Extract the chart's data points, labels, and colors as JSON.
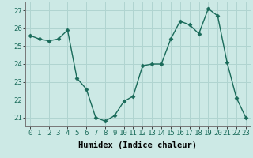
{
  "x": [
    0,
    1,
    2,
    3,
    4,
    5,
    6,
    7,
    8,
    9,
    10,
    11,
    12,
    13,
    14,
    15,
    16,
    17,
    18,
    19,
    20,
    21,
    22,
    23
  ],
  "y": [
    25.6,
    25.4,
    25.3,
    25.4,
    25.9,
    23.2,
    22.6,
    21.0,
    20.8,
    21.1,
    21.9,
    22.2,
    23.9,
    24.0,
    24.0,
    25.4,
    26.4,
    26.2,
    25.7,
    27.1,
    26.7,
    24.1,
    22.1,
    21.0
  ],
  "line_color": "#1a6b5a",
  "marker": "D",
  "marker_size": 2.5,
  "linewidth": 1.0,
  "bg_color": "#cce9e5",
  "grid_color": "#b0d4d0",
  "xlabel": "Humidex (Indice chaleur)",
  "xlabel_fontsize": 7.5,
  "tick_fontsize": 6.5,
  "ylim": [
    20.5,
    27.5
  ],
  "yticks": [
    21,
    22,
    23,
    24,
    25,
    26,
    27
  ],
  "xticks": [
    0,
    1,
    2,
    3,
    4,
    5,
    6,
    7,
    8,
    9,
    10,
    11,
    12,
    13,
    14,
    15,
    16,
    17,
    18,
    19,
    20,
    21,
    22,
    23
  ],
  "xlim": [
    -0.5,
    23.5
  ]
}
